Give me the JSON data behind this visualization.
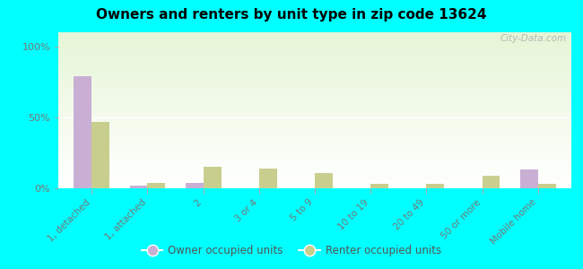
{
  "title": "Owners and renters by unit type in zip code 13624",
  "categories": [
    "1, detached",
    "1, attached",
    "2",
    "3 or 4",
    "5 to 9",
    "10 to 19",
    "20 to 49",
    "50 or more",
    "Mobile home"
  ],
  "owner_values": [
    79,
    2,
    4,
    0,
    0,
    0,
    0,
    0,
    13
  ],
  "renter_values": [
    47,
    4,
    15,
    14,
    11,
    3,
    3,
    9,
    3
  ],
  "owner_color": "#c9afd4",
  "renter_color": "#c8cf8e",
  "background_color": "#00ffff",
  "yticks": [
    0,
    50,
    100
  ],
  "ylabels": [
    "0%",
    "50%",
    "100%"
  ],
  "ylim": [
    0,
    110
  ],
  "watermark": "City-Data.com",
  "legend_owner": "Owner occupied units",
  "legend_renter": "Renter occupied units",
  "bar_width": 0.32
}
